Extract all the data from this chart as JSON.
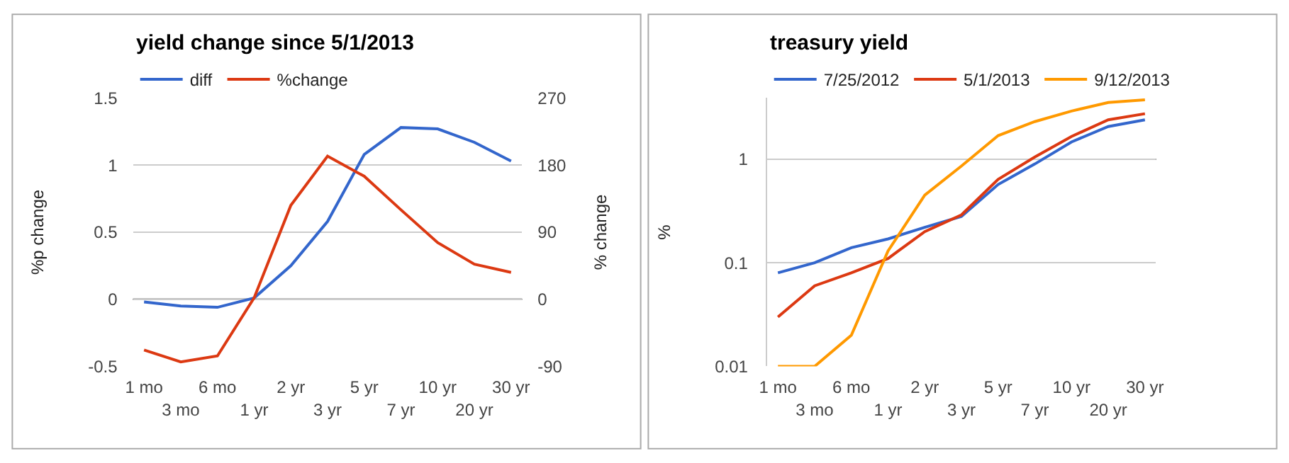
{
  "chart_data": [
    {
      "type": "line",
      "title": "yield change since 5/1/2013",
      "ylabel": "%p change",
      "y2label": "% change",
      "categories": [
        "1 mo",
        "3 mo",
        "6 mo",
        "1 yr",
        "2 yr",
        "3 yr",
        "5 yr",
        "7 yr",
        "10 yr",
        "20 yr",
        "30 yr"
      ],
      "series": [
        {
          "name": "diff",
          "color": "#3366cc",
          "values": [
            -0.02,
            -0.05,
            -0.06,
            0.01,
            0.25,
            0.58,
            1.08,
            1.28,
            1.27,
            1.17,
            1.03
          ]
        },
        {
          "name": "%change",
          "color": "#dc3912",
          "axis": "y2",
          "values": [
            -68,
            -84,
            -76,
            2,
            126,
            192,
            165,
            120,
            76,
            47,
            36
          ]
        }
      ],
      "ylim": [
        -0.5,
        1.5
      ],
      "yticks": [
        -0.5,
        0,
        0.5,
        1,
        1.5
      ],
      "y2lim": [
        -90,
        270
      ],
      "y2ticks": [
        -90,
        0,
        90,
        180,
        270
      ],
      "grid": "y",
      "legend": "top left",
      "ref_lines": [
        {
          "axis": "y",
          "value": 0,
          "color": "#000000"
        }
      ]
    },
    {
      "type": "line",
      "title": "treasury yield",
      "ylabel": "%",
      "categories": [
        "1 mo",
        "3 mo",
        "6 mo",
        "1 yr",
        "2 yr",
        "3 yr",
        "5 yr",
        "7 yr",
        "10 yr",
        "20 yr",
        "30 yr"
      ],
      "series": [
        {
          "name": "7/25/2012",
          "color": "#3366cc",
          "values": [
            0.08,
            0.1,
            0.14,
            0.17,
            0.22,
            0.28,
            0.57,
            0.9,
            1.47,
            2.07,
            2.4
          ]
        },
        {
          "name": "5/1/2013",
          "color": "#dc3912",
          "values": [
            0.03,
            0.06,
            0.08,
            0.11,
            0.2,
            0.29,
            0.64,
            1.05,
            1.66,
            2.4,
            2.75
          ]
        },
        {
          "name": "9/12/2013",
          "color": "#ff9900",
          "values": [
            0.01,
            0.01,
            0.02,
            0.13,
            0.45,
            0.86,
            1.69,
            2.31,
            2.92,
            3.53,
            3.75
          ]
        }
      ],
      "log": "y",
      "ylim": [
        0.01,
        3.9
      ],
      "yticks": [
        0.01,
        0.1,
        1
      ],
      "grid": "y",
      "legend": "top left",
      "ref_lines": [
        {
          "axis": "y",
          "value": 1,
          "color": "#000000"
        }
      ]
    }
  ]
}
